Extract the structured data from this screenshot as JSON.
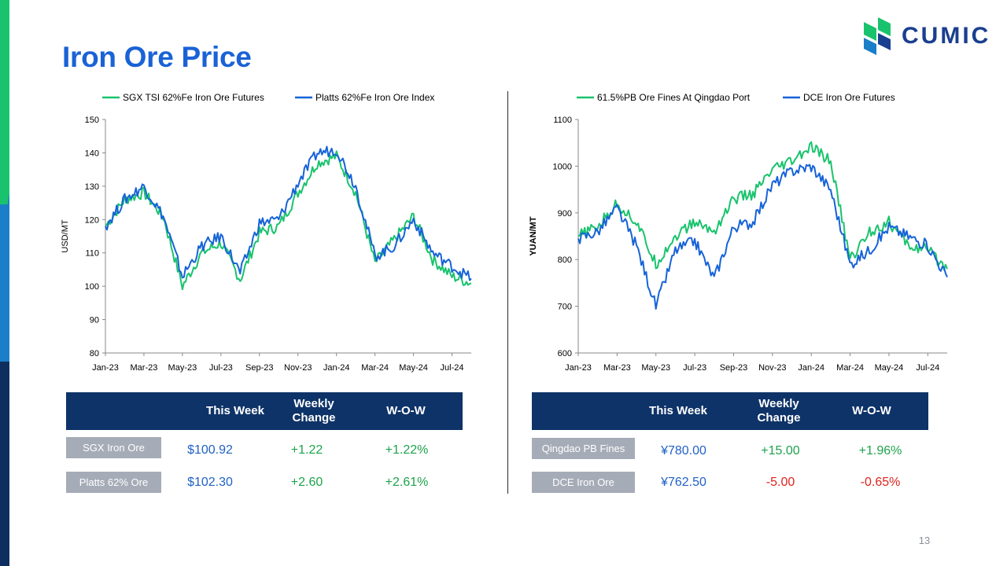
{
  "title": "Iron Ore Price",
  "logo": {
    "text": "CUMIC"
  },
  "page_number": "13",
  "colors": {
    "green_series": "#19c36d",
    "blue_series": "#1663d8",
    "title": "#1a62d6",
    "table_header": "#0e3368"
  },
  "chart_data": [
    {
      "type": "line",
      "title": "",
      "xlabel": "",
      "ylabel": "USD/MT",
      "ylim": [
        80,
        150
      ],
      "yticks": [
        "150",
        "140",
        "130",
        "120",
        "110",
        "100",
        "90",
        "80"
      ],
      "xticks": [
        "Jan-23",
        "Mar-23",
        "May-23",
        "Jul-23",
        "Sep-23",
        "Nov-23",
        "Jan-24",
        "Mar-24",
        "May-24",
        "Jul-24"
      ],
      "x": [
        "Jan-23",
        "Feb-23",
        "Mar-23",
        "Apr-23",
        "May-23",
        "Jun-23",
        "Jul-23",
        "Aug-23",
        "Sep-23",
        "Oct-23",
        "Nov-23",
        "Dec-23",
        "Jan-24",
        "Feb-24",
        "Mar-24",
        "Apr-24",
        "May-24",
        "Jun-24",
        "Jul-24",
        "Aug-24"
      ],
      "legend": "top",
      "series": [
        {
          "name": "SGX TSI 62%Fe Iron Ore Futures",
          "color": "#19c36d",
          "values": [
            118,
            126,
            128,
            121,
            100,
            110,
            113,
            102,
            116,
            118,
            128,
            137,
            139,
            128,
            107,
            114,
            121,
            108,
            103,
            100.9
          ]
        },
        {
          "name": "Platts 62%Fe Iron Ore Index",
          "color": "#1663d8",
          "values": [
            118,
            126,
            130,
            121,
            103,
            112,
            115,
            104,
            119,
            120,
            131,
            140,
            141,
            130,
            109,
            112,
            120,
            110,
            106,
            102.3
          ]
        }
      ]
    },
    {
      "type": "line",
      "title": "",
      "xlabel": "",
      "ylabel": "YUAN/MT",
      "ylim": [
        600,
        1100
      ],
      "yticks": [
        "1100",
        "1000",
        "900",
        "800",
        "700",
        "600"
      ],
      "xticks": [
        "Jan-23",
        "Mar-23",
        "May-23",
        "Jul-23",
        "Sep-23",
        "Nov-23",
        "Jan-24",
        "Mar-24",
        "May-24",
        "Jul-24"
      ],
      "x": [
        "Jan-23",
        "Feb-23",
        "Mar-23",
        "Apr-23",
        "May-23",
        "Jun-23",
        "Jul-23",
        "Aug-23",
        "Sep-23",
        "Oct-23",
        "Nov-23",
        "Dec-23",
        "Jan-24",
        "Feb-24",
        "Mar-24",
        "Apr-24",
        "May-24",
        "Jun-24",
        "Jul-24",
        "Aug-24"
      ],
      "legend": "top",
      "series": [
        {
          "name": "61.5%PB Ore Fines At Qingdao Port",
          "color": "#19c36d",
          "values": [
            850,
            870,
            920,
            880,
            790,
            850,
            880,
            860,
            930,
            940,
            990,
            1010,
            1040,
            1010,
            800,
            860,
            880,
            830,
            820,
            780
          ]
        },
        {
          "name": "DCE Iron Ore Futures",
          "color": "#1663d8",
          "values": [
            845,
            860,
            910,
            830,
            700,
            820,
            840,
            760,
            870,
            880,
            960,
            990,
            1000,
            950,
            790,
            820,
            870,
            850,
            830,
            762.5
          ]
        }
      ]
    }
  ],
  "tables": [
    {
      "headers": {
        "this_week": "This Week",
        "weekly_change": "Weekly Change",
        "wow": "W-O-W"
      },
      "rows": [
        {
          "label": "SGX Iron Ore",
          "this_week": "$100.92",
          "change": "+1.22",
          "wow": "+1.22%",
          "direction": "up"
        },
        {
          "label": "Platts 62% Ore",
          "this_week": "$102.30",
          "change": "+2.60",
          "wow": "+2.61%",
          "direction": "up"
        }
      ]
    },
    {
      "headers": {
        "this_week": "This Week",
        "weekly_change": "Weekly Change",
        "wow": "W-O-W"
      },
      "rows": [
        {
          "label": "Qingdao PB Fines",
          "this_week": "¥780.00",
          "change": "+15.00",
          "wow": "+1.96%",
          "direction": "up"
        },
        {
          "label": "DCE Iron Ore",
          "this_week": "¥762.50",
          "change": "-5.00",
          "wow": "-0.65%",
          "direction": "down"
        }
      ]
    }
  ]
}
